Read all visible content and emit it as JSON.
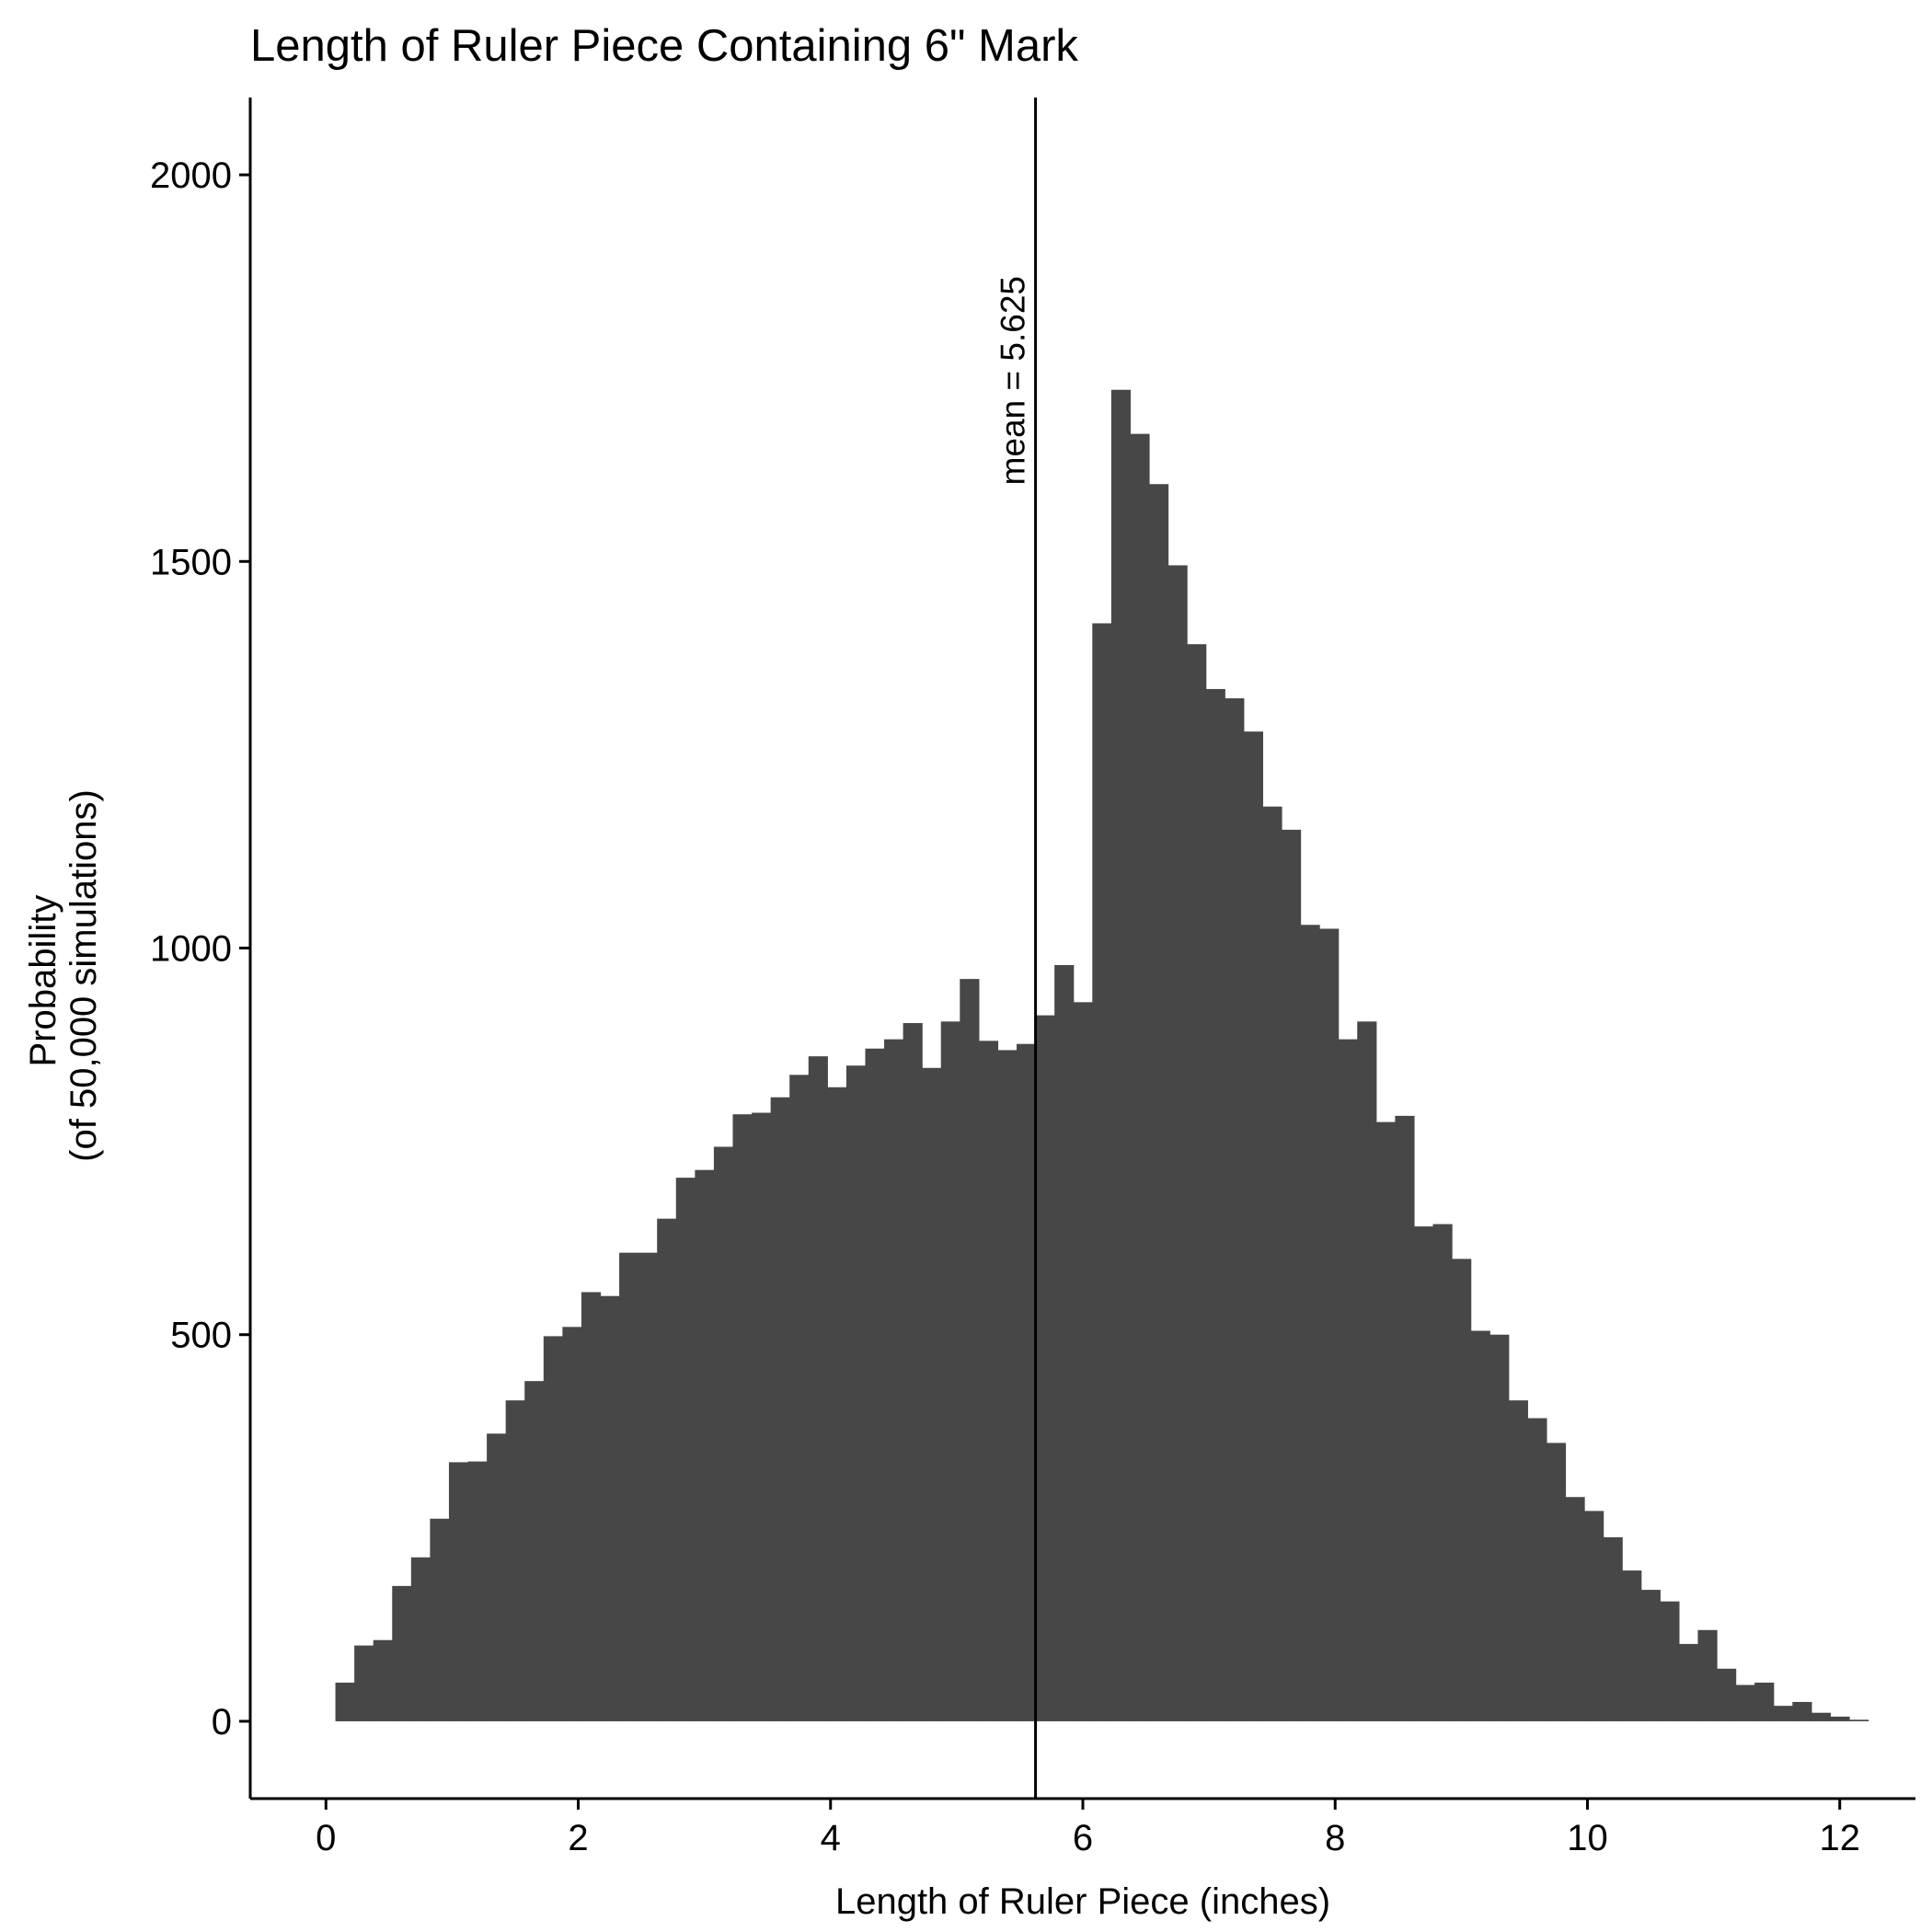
{
  "chart_data": {
    "type": "bar",
    "title": "Length of Ruler Piece Containing 6\" Mark",
    "xlabel": "Length of Ruler Piece (inches)",
    "ylabel": [
      "Probability",
      "(of 50,000 simulations)"
    ],
    "xlim": [
      -0.6,
      12.6
    ],
    "ylim": [
      -100,
      2100
    ],
    "xticks": [
      "0",
      "2",
      "4",
      "6",
      "8",
      "10",
      "12"
    ],
    "yticks": [
      "0",
      "500",
      "1000",
      "1500",
      "2000"
    ],
    "grid": false,
    "bar_color": "#474747",
    "bin_width": 0.15,
    "bins_start": 0.075,
    "values": [
      50,
      98,
      105,
      175,
      212,
      262,
      335,
      336,
      372,
      415,
      440,
      498,
      510,
      555,
      550,
      606,
      606,
      650,
      703,
      713,
      743,
      785,
      787,
      807,
      836,
      860,
      820,
      848,
      870,
      882,
      903,
      845,
      905,
      960,
      880,
      868,
      876,
      913,
      978,
      930,
      1420,
      1722,
      1665,
      1600,
      1495,
      1393,
      1335,
      1323,
      1280,
      1183,
      1153,
      1030,
      1025,
      882,
      905,
      775,
      783,
      640,
      643,
      598,
      505,
      500,
      415,
      392,
      360,
      290,
      272,
      238,
      195,
      170,
      155,
      100,
      118,
      68,
      47,
      50,
      20,
      25,
      11,
      6,
      2
    ],
    "mean_line": {
      "x": 5.625,
      "label": "mean = 5.625"
    }
  }
}
